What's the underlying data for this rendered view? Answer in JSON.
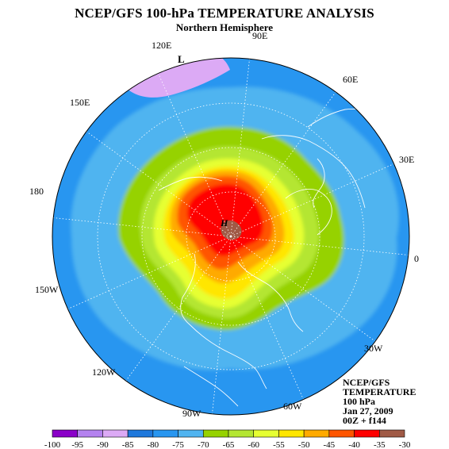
{
  "header": {
    "title": "NCEP/GFS 100-hPa TEMPERATURE ANALYSIS",
    "subtitle": "Northern Hemisphere"
  },
  "map": {
    "projection": "polar stereographic, north pole centered",
    "field": "100-hPa temperature (°C)",
    "longitude_labels": [
      {
        "name": "lon-90e",
        "text": "90E"
      },
      {
        "name": "lon-60e",
        "text": "60E"
      },
      {
        "name": "lon-30e",
        "text": "30E"
      },
      {
        "name": "lon-0",
        "text": "0"
      },
      {
        "name": "lon-30w",
        "text": "30W"
      },
      {
        "name": "lon-60w",
        "text": "60W"
      },
      {
        "name": "lon-90w",
        "text": "90W"
      },
      {
        "name": "lon-120w",
        "text": "120W"
      },
      {
        "name": "lon-150w",
        "text": "150W"
      },
      {
        "name": "lon-180",
        "text": "180"
      },
      {
        "name": "lon-150e",
        "text": "150E"
      },
      {
        "name": "lon-120e",
        "text": "120E"
      }
    ],
    "markers": {
      "low": "L",
      "high": "H"
    }
  },
  "info_box": {
    "lines": [
      "NCEP/GFS",
      "TEMPERATURE",
      "100 hPa",
      "Jan 27, 2009",
      "00Z + f144"
    ]
  },
  "colorbar": {
    "tick_labels": [
      "-100",
      "-95",
      "-90",
      "-85",
      "-80",
      "-75",
      "-70",
      "-65",
      "-60",
      "-55",
      "-50",
      "-45",
      "-40",
      "-35",
      "-30"
    ],
    "colors": [
      "#8a00c8",
      "#b482ef",
      "#dcaaf5",
      "#1e78dc",
      "#2896f0",
      "#50b4f0",
      "#96d200",
      "#b4e632",
      "#e6ff32",
      "#ffe600",
      "#ffaa00",
      "#ff5500",
      "#ff0000",
      "#a05a46"
    ]
  }
}
